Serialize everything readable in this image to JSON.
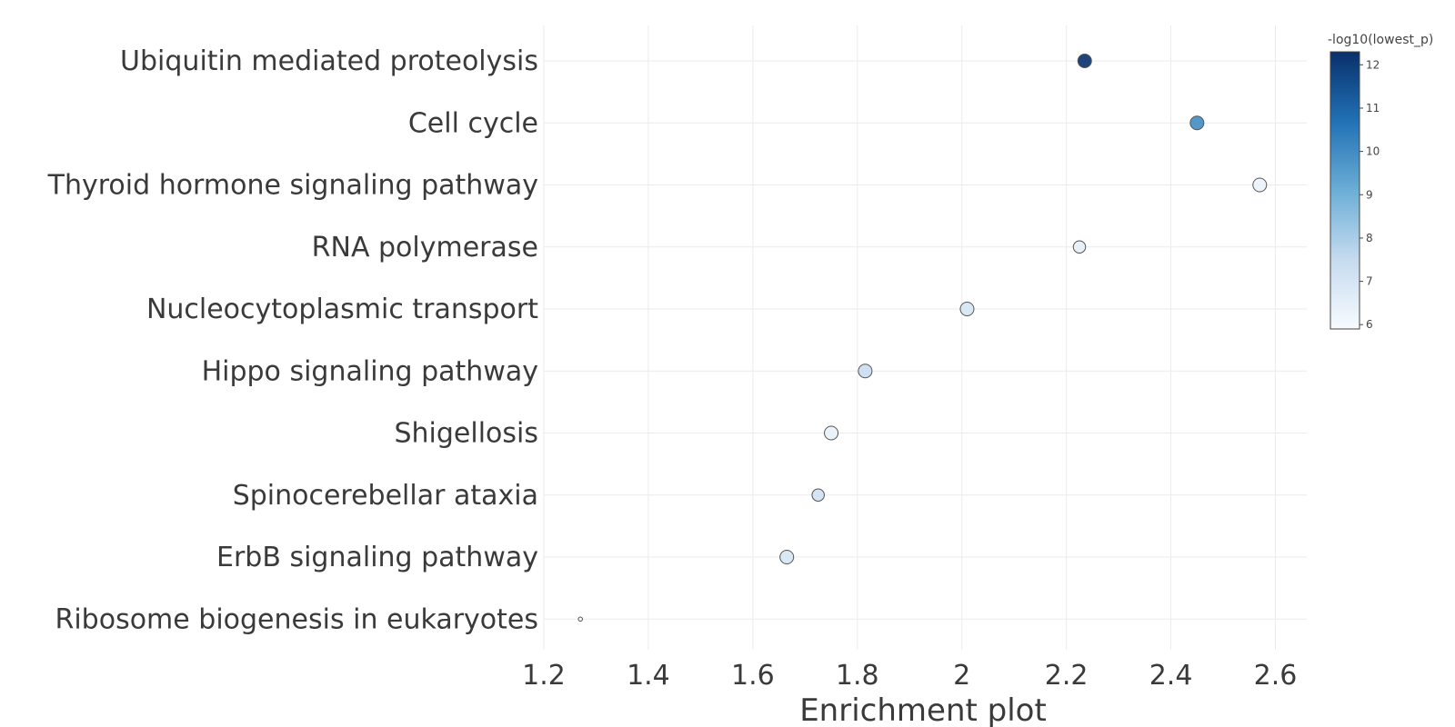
{
  "chart_data": {
    "type": "scatter",
    "xlabel": "Enrichment plot",
    "xlim": [
      1.2,
      2.66
    ],
    "xticks": [
      1.2,
      1.4,
      1.6,
      1.8,
      2,
      2.2,
      2.4,
      2.6
    ],
    "xtick_labels": [
      "1.2",
      "1.4",
      "1.6",
      "1.8",
      "2",
      "2.2",
      "2.4",
      "2.6"
    ],
    "grid": true,
    "categories": [
      "Ubiquitin mediated proteolysis",
      "Cell cycle",
      "Thyroid hormone signaling pathway",
      "RNA polymerase",
      "Nucleocytoplasmic transport",
      "Hippo signaling pathway",
      "Shigellosis",
      "Spinocerebellar ataxia",
      "ErbB signaling pathway",
      "Ribosome biogenesis in eukaryotes"
    ],
    "x": [
      2.235,
      2.45,
      2.57,
      2.225,
      2.01,
      1.815,
      1.75,
      1.725,
      1.665,
      1.27
    ],
    "color_values": [
      12.4,
      10.0,
      6.3,
      6.5,
      7.0,
      7.4,
      6.4,
      7.2,
      7.0,
      6.0
    ],
    "relative_size": [
      1.0,
      1.0,
      1.0,
      0.9,
      1.0,
      1.0,
      1.0,
      0.9,
      1.0,
      0.3
    ],
    "colorbar": {
      "title": "-log10(lowest_p)",
      "range": [
        5.9,
        12.3
      ],
      "ticks": [
        6,
        7,
        8,
        9,
        10,
        11,
        12
      ],
      "tick_labels": [
        "6",
        "7",
        "8",
        "9",
        "10",
        "11",
        "12"
      ],
      "colorscale": [
        "#f7fbff",
        "#c6dbef",
        "#6baed6",
        "#2171b5",
        "#08306b"
      ]
    }
  }
}
